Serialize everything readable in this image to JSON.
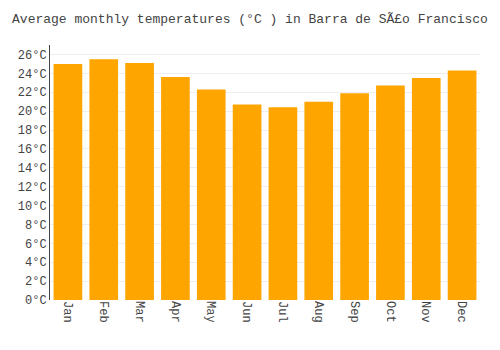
{
  "chart_data": {
    "type": "bar",
    "title": "Average monthly temperatures (°C ) in Barra de SÃ£o Francisco",
    "categories": [
      "Jan",
      "Feb",
      "Mar",
      "Apr",
      "May",
      "Jun",
      "Jul",
      "Aug",
      "Sep",
      "Oct",
      "Nov",
      "Dec"
    ],
    "values": [
      25.0,
      25.5,
      25.1,
      23.6,
      22.3,
      20.7,
      20.4,
      21.0,
      21.9,
      22.7,
      23.5,
      24.3
    ],
    "color": "#FFA500",
    "ylim": [
      0,
      27
    ],
    "yticks": [
      {
        "value": 0,
        "label": "0°C"
      },
      {
        "value": 2,
        "label": "2°C"
      },
      {
        "value": 4,
        "label": "4°C"
      },
      {
        "value": 6,
        "label": "6°C"
      },
      {
        "value": 8,
        "label": "8°C"
      },
      {
        "value": 10,
        "label": "10°C"
      },
      {
        "value": 12,
        "label": "12°C"
      },
      {
        "value": 14,
        "label": "14°C"
      },
      {
        "value": 16,
        "label": "16°C"
      },
      {
        "value": 18,
        "label": "18°C"
      },
      {
        "value": 20,
        "label": "20°C"
      },
      {
        "value": 22,
        "label": "22°C"
      },
      {
        "value": 24,
        "label": "24°C"
      },
      {
        "value": 26,
        "label": "26°C"
      }
    ],
    "grid": true
  }
}
